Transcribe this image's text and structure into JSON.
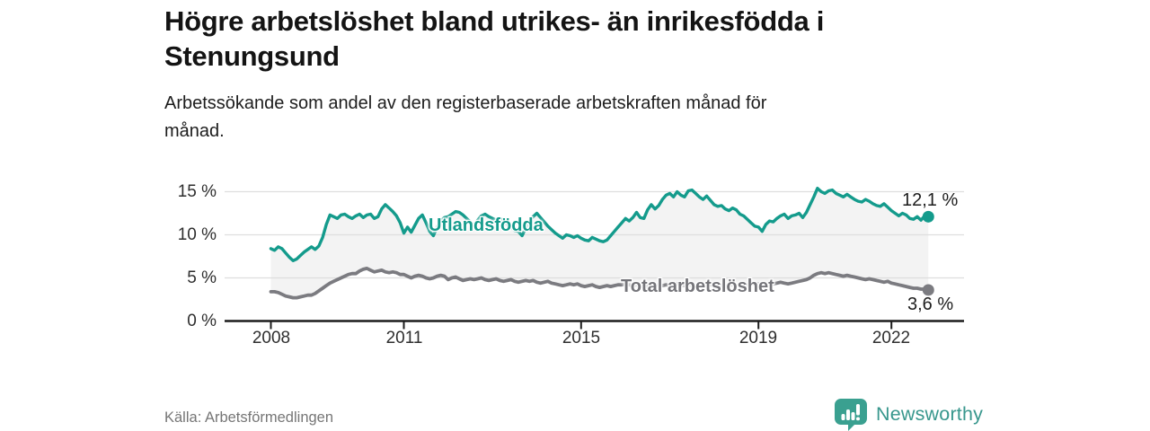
{
  "chart_data": {
    "type": "line",
    "title": "Högre arbetslöshet bland utrikes- än inrikesfödda i Stenungsund",
    "subtitle": "Arbetssökande som andel av den registerbaserade arbetskraften månad för månad.",
    "source": "Källa: Arbetsförmedlingen",
    "unit": "percent",
    "x_start": "2008-01",
    "x_frequency": "monthly",
    "ylim": [
      0,
      16.5
    ],
    "grid": true,
    "legend_position": "inline-on-line",
    "band_fill": "#f3f3f3",
    "gridline_color": "#dedede",
    "axis_color": "#1c1c1c",
    "ytick_labels": [
      "15 %",
      "10 %",
      "5 %",
      "0 %"
    ],
    "xtick_labels": [
      "2008",
      "2011",
      "2015",
      "2019",
      "2022"
    ],
    "xtick_years": [
      2008,
      2011,
      2015,
      2019,
      2022
    ],
    "series": [
      {
        "name": "Utlandsfödda",
        "color": "#149b8c",
        "end_label": "12,1 %",
        "end_value": 12.1,
        "values": [
          8.4,
          8.2,
          8.6,
          8.4,
          7.9,
          7.4,
          7.0,
          7.2,
          7.6,
          8.0,
          8.3,
          8.6,
          8.3,
          8.7,
          9.7,
          11.2,
          12.3,
          12.1,
          11.9,
          12.3,
          12.4,
          12.1,
          11.9,
          12.2,
          12.4,
          12.0,
          12.3,
          12.4,
          11.9,
          12.1,
          13.0,
          13.5,
          13.1,
          12.7,
          12.2,
          11.4,
          10.2,
          10.9,
          10.3,
          11.1,
          11.9,
          12.3,
          11.4,
          10.4,
          9.9,
          10.9,
          11.6,
          12.0,
          12.1,
          12.4,
          12.7,
          12.6,
          12.3,
          11.9,
          11.5,
          11.1,
          11.7,
          12.2,
          12.4,
          12.1,
          11.9,
          11.7,
          11.9,
          11.6,
          11.2,
          10.9,
          10.5,
          10.4,
          9.9,
          10.8,
          11.6,
          12.1,
          12.5,
          12.0,
          11.5,
          11.0,
          10.6,
          10.2,
          9.9,
          9.6,
          10.0,
          9.9,
          9.7,
          9.9,
          9.6,
          9.4,
          9.3,
          9.7,
          9.5,
          9.3,
          9.2,
          9.4,
          9.9,
          10.4,
          10.9,
          11.4,
          11.9,
          11.6,
          12.0,
          12.6,
          12.0,
          11.9,
          12.9,
          13.5,
          13.0,
          13.4,
          14.1,
          14.6,
          14.8,
          14.4,
          15.0,
          14.6,
          14.4,
          15.1,
          15.2,
          14.8,
          14.4,
          14.1,
          14.5,
          14.0,
          13.5,
          13.3,
          13.4,
          13.0,
          12.8,
          13.1,
          12.9,
          12.4,
          12.2,
          11.8,
          11.4,
          11.0,
          10.9,
          10.4,
          11.2,
          11.6,
          11.5,
          11.9,
          12.2,
          12.4,
          11.9,
          12.2,
          12.3,
          12.5,
          12.0,
          12.6,
          13.5,
          14.4,
          15.4,
          15.0,
          14.8,
          15.1,
          15.2,
          14.8,
          14.6,
          14.4,
          14.7,
          14.4,
          14.1,
          13.9,
          13.8,
          14.1,
          13.9,
          13.6,
          13.4,
          13.3,
          13.6,
          13.2,
          12.8,
          12.5,
          12.2,
          12.5,
          12.3,
          11.9,
          11.8,
          12.1,
          11.7,
          12.2,
          12.1
        ]
      },
      {
        "name": "Total arbetslöshet",
        "color": "#7b7b80",
        "end_label": "3,6 %",
        "end_value": 3.6,
        "values": [
          3.4,
          3.4,
          3.3,
          3.1,
          2.9,
          2.8,
          2.7,
          2.7,
          2.8,
          2.9,
          3.0,
          3.0,
          3.2,
          3.5,
          3.8,
          4.1,
          4.4,
          4.6,
          4.8,
          5.0,
          5.2,
          5.4,
          5.5,
          5.5,
          5.8,
          6.0,
          6.1,
          5.9,
          5.7,
          5.8,
          5.9,
          5.7,
          5.6,
          5.7,
          5.6,
          5.4,
          5.4,
          5.2,
          5.0,
          5.2,
          5.3,
          5.2,
          5.0,
          4.9,
          5.0,
          5.2,
          5.3,
          5.2,
          4.8,
          5.0,
          5.1,
          4.9,
          4.7,
          4.8,
          4.9,
          4.8,
          4.9,
          5.0,
          4.8,
          4.7,
          4.8,
          4.9,
          4.7,
          4.6,
          4.7,
          4.8,
          4.6,
          4.5,
          4.6,
          4.7,
          4.6,
          4.7,
          4.5,
          4.4,
          4.5,
          4.6,
          4.4,
          4.3,
          4.2,
          4.1,
          4.2,
          4.3,
          4.2,
          4.3,
          4.1,
          4.0,
          4.1,
          4.2,
          4.0,
          3.9,
          4.0,
          4.1,
          4.0,
          4.1,
          4.2,
          4.2,
          4.3,
          4.2,
          4.1,
          4.2,
          4.1,
          4.0,
          4.1,
          4.2,
          4.1,
          4.2,
          4.1,
          4.2,
          4.1,
          4.2,
          4.3,
          4.2,
          4.1,
          4.2,
          4.1,
          4.0,
          4.1,
          4.2,
          4.3,
          4.2,
          4.1,
          4.2,
          4.1,
          4.0,
          4.1,
          4.2,
          4.1,
          4.2,
          4.3,
          4.2,
          4.3,
          4.4,
          4.3,
          4.2,
          4.3,
          4.4,
          4.3,
          4.4,
          4.5,
          4.4,
          4.3,
          4.4,
          4.5,
          4.6,
          4.7,
          4.8,
          5.0,
          5.3,
          5.5,
          5.6,
          5.5,
          5.6,
          5.5,
          5.4,
          5.3,
          5.2,
          5.3,
          5.2,
          5.1,
          5.0,
          4.9,
          4.8,
          4.9,
          4.8,
          4.7,
          4.6,
          4.5,
          4.6,
          4.4,
          4.3,
          4.2,
          4.1,
          4.0,
          3.9,
          3.8,
          3.8,
          3.7,
          3.7,
          3.6
        ]
      }
    ]
  },
  "brand": {
    "name": "Newsworthy",
    "color": "#38978d"
  }
}
